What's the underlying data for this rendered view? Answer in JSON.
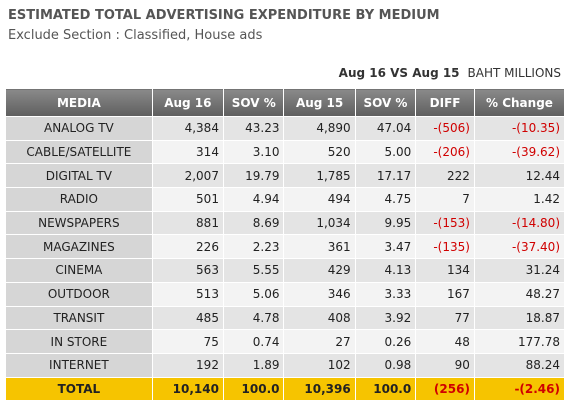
{
  "header": {
    "title": "ESTIMATED TOTAL ADVERTISING EXPENDITURE BY MEDIUM",
    "subtitle": "Exclude Section : Classified, House ads",
    "period": "Aug 16 VS Aug 15",
    "unit": "BAHT MILLIONS"
  },
  "table": {
    "columns": [
      "MEDIA",
      "Aug 16",
      "SOV %",
      "Aug 15",
      "SOV %",
      "DIFF",
      "% Change"
    ],
    "rows": [
      [
        "ANALOG   TV",
        "4,384",
        "43.23",
        "4,890",
        "47.04",
        "-(506)",
        "-(10.35)"
      ],
      [
        "CABLE/SATELLITE",
        "314",
        "3.10",
        "520",
        "5.00",
        "-(206)",
        "-(39.62)"
      ],
      [
        "DIGITAL TV",
        "2,007",
        "19.79",
        "1,785",
        "17.17",
        "222",
        "12.44"
      ],
      [
        "RADIO",
        "501",
        "4.94",
        "494",
        "4.75",
        "7",
        "1.42"
      ],
      [
        "NEWSPAPERS",
        "881",
        "8.69",
        "1,034",
        "9.95",
        "-(153)",
        "-(14.80)"
      ],
      [
        "MAGAZINES",
        "226",
        "2.23",
        "361",
        "3.47",
        "-(135)",
        "-(37.40)"
      ],
      [
        "CINEMA",
        "563",
        "5.55",
        "429",
        "4.13",
        "134",
        "31.24"
      ],
      [
        "OUTDOOR",
        "513",
        "5.06",
        "346",
        "3.33",
        "167",
        "48.27"
      ],
      [
        "TRANSIT",
        "485",
        "4.78",
        "408",
        "3.92",
        "77",
        "18.87"
      ],
      [
        "IN STORE",
        "75",
        "0.74",
        "27",
        "0.26",
        "48",
        "177.78"
      ],
      [
        "INTERNET",
        "192",
        "1.89",
        "102",
        "0.98",
        "90",
        "88.24"
      ]
    ],
    "total": [
      "TOTAL",
      "10,140",
      "100.0",
      "10,396",
      "100.0",
      "(256)",
      "-(2.46)"
    ]
  }
}
